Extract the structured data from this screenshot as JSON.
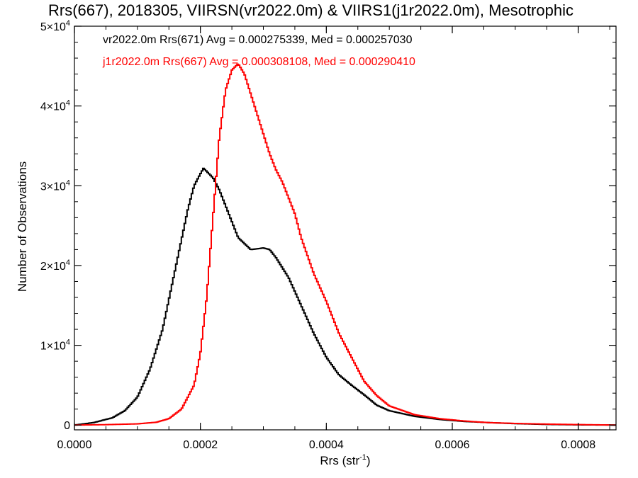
{
  "chart_data": {
    "type": "line",
    "title": "Rrs(667), 2018305, VIIRSN(vr2022.0m) & VIIRS1(j1r2022.0m), Mesotrophic",
    "xlabel": {
      "text": "Rrs (str",
      "sup": "-1",
      "close": ")"
    },
    "ylabel": "Number of Observations",
    "xlim": [
      0.0,
      0.00086
    ],
    "ylim": [
      -600,
      50000
    ],
    "xticks": [
      {
        "value": 0.0,
        "label": "0.0000"
      },
      {
        "value": 0.0002,
        "label": "0.0002"
      },
      {
        "value": 0.0004,
        "label": "0.0004"
      },
      {
        "value": 0.0006,
        "label": "0.0006"
      },
      {
        "value": 0.0008,
        "label": "0.0008"
      }
    ],
    "yticks": [
      {
        "value": 0,
        "label": "0",
        "sup": ""
      },
      {
        "value": 10000,
        "label": "1×10",
        "sup": "4"
      },
      {
        "value": 20000,
        "label": "2×10",
        "sup": "4"
      },
      {
        "value": 30000,
        "label": "3×10",
        "sup": "4"
      },
      {
        "value": 40000,
        "label": "4×10",
        "sup": "4"
      },
      {
        "value": 50000,
        "label": "5×10",
        "sup": "4"
      }
    ],
    "grid": false,
    "legend_position": "top-left",
    "series": [
      {
        "name": "vr2022.0m Rrs(671) Avg = 0.000275339, Med = 0.000257030",
        "color": "#000000",
        "x": [
          0.0,
          3e-05,
          6e-05,
          8e-05,
          0.0001,
          0.00012,
          0.00014,
          0.00016,
          0.00018,
          0.00019,
          0.0002,
          0.000205,
          0.00021,
          0.00022,
          0.00023,
          0.00024,
          0.00026,
          0.00028,
          0.0003,
          0.00031,
          0.00032,
          0.00034,
          0.00036,
          0.00038,
          0.0004,
          0.00042,
          0.00044,
          0.00046,
          0.00048,
          0.0005,
          0.00054,
          0.00058,
          0.00062,
          0.00066,
          0.0007,
          0.00075,
          0.0008,
          0.00086
        ],
        "y": [
          0,
          300,
          900,
          1800,
          3500,
          7000,
          12000,
          19500,
          27000,
          30000,
          31500,
          32200,
          31800,
          31000,
          29500,
          27500,
          23500,
          22000,
          22200,
          22000,
          21000,
          18500,
          15000,
          11500,
          8500,
          6300,
          5000,
          3800,
          2500,
          1800,
          1100,
          700,
          450,
          300,
          180,
          80,
          30,
          0
        ]
      },
      {
        "name": "j1r2022.0m Rrs(667) Avg = 0.000308108, Med = 0.000290410",
        "color": "#ff0000",
        "x": [
          0.0,
          5e-05,
          0.0001,
          0.00013,
          0.00015,
          0.00017,
          0.00019,
          0.0002,
          0.00021,
          0.00022,
          0.00023,
          0.00024,
          0.00025,
          0.00026,
          0.00027,
          0.00028,
          0.00029,
          0.0003,
          0.00031,
          0.00032,
          0.00033,
          0.00034,
          0.00035,
          0.00036,
          0.00038,
          0.0004,
          0.00042,
          0.00044,
          0.00046,
          0.00048,
          0.0005,
          0.00054,
          0.00058,
          0.00062,
          0.00066,
          0.0007,
          0.00075,
          0.0008,
          0.00086
        ],
        "y": [
          0,
          50,
          150,
          350,
          800,
          2000,
          5000,
          9000,
          16000,
          26000,
          36000,
          42000,
          44500,
          45300,
          44000,
          41500,
          39000,
          36500,
          34000,
          32000,
          30500,
          28500,
          26500,
          23500,
          19000,
          15500,
          11500,
          8500,
          5500,
          3700,
          2400,
          1300,
          800,
          500,
          300,
          200,
          120,
          60,
          0
        ]
      }
    ]
  }
}
